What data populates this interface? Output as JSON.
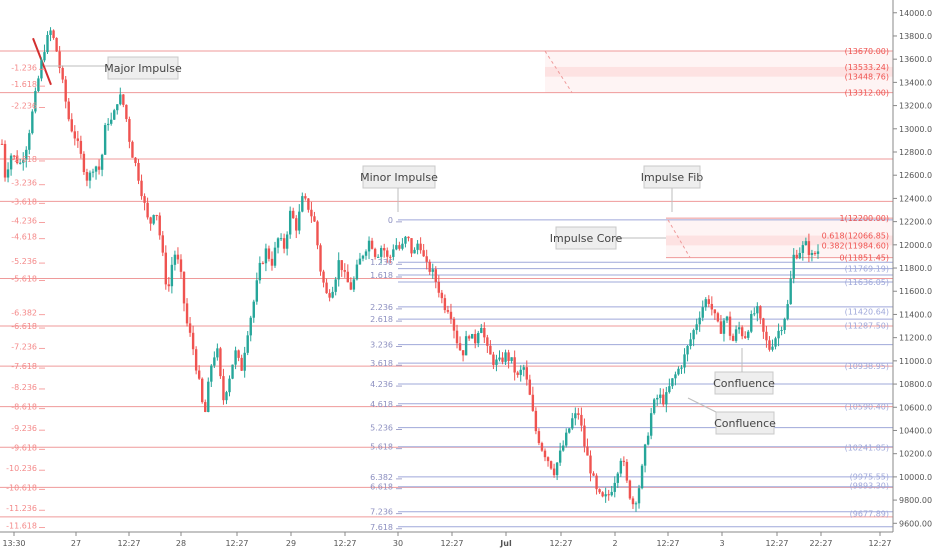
{
  "chart_data": {
    "type": "candlestick",
    "x_tick_labels": [
      "13:30",
      "27",
      "12:27",
      "28",
      "12:27",
      "29",
      "12:27",
      "30",
      "12:27",
      "Jul",
      "12:27",
      "2",
      "12:27",
      "3",
      "12:27",
      "22:27",
      "12:27"
    ],
    "y_tick_labels": [
      "14000.00",
      "13800.00",
      "13600.00",
      "13400.00",
      "13200.00",
      "13000.00",
      "12800.00",
      "12600.00",
      "12400.00",
      "12200.00",
      "12000.00",
      "11800.00",
      "11600.00",
      "11400.00",
      "11200.00",
      "11000.00",
      "10800.00",
      "10600.00",
      "10400.00",
      "10200.00",
      "10000.00",
      "9800.00",
      "9600.00"
    ],
    "y_ticks": [
      14000,
      13800,
      13600,
      13400,
      13200,
      13000,
      12800,
      12600,
      12400,
      12200,
      12000,
      11800,
      11600,
      11400,
      11200,
      11000,
      10800,
      10600,
      10400,
      10200,
      10000,
      9800,
      9600
    ],
    "ylim": [
      9525,
      14110
    ],
    "price_path": [
      [
        0,
        12870
      ],
      [
        0.5,
        12600
      ],
      [
        1.5,
        12780
      ],
      [
        3,
        12700
      ],
      [
        4,
        12860
      ],
      [
        5,
        13150
      ],
      [
        6,
        13450
      ],
      [
        7,
        13720
      ],
      [
        8,
        13850
      ],
      [
        9,
        13650
      ],
      [
        11,
        13050
      ],
      [
        12,
        12920
      ],
      [
        14,
        12550
      ],
      [
        15,
        12700
      ],
      [
        16,
        12640
      ],
      [
        17,
        13080
      ],
      [
        18,
        13060
      ],
      [
        19,
        13300
      ],
      [
        20,
        13180
      ],
      [
        21,
        12830
      ],
      [
        22,
        12650
      ],
      [
        24,
        12150
      ],
      [
        25,
        12350
      ],
      [
        26,
        11980
      ],
      [
        27,
        11570
      ],
      [
        28,
        11950
      ],
      [
        29,
        11800
      ],
      [
        30,
        11350
      ],
      [
        31,
        11150
      ],
      [
        32,
        10850
      ],
      [
        33,
        10500
      ],
      [
        34,
        10950
      ],
      [
        35,
        11120
      ],
      [
        36,
        10650
      ],
      [
        37,
        10850
      ],
      [
        38,
        11080
      ],
      [
        39,
        10920
      ],
      [
        40,
        11250
      ],
      [
        41,
        11500
      ],
      [
        42,
        11800
      ],
      [
        43,
        11950
      ],
      [
        44,
        11850
      ],
      [
        45,
        12050
      ],
      [
        46,
        11980
      ],
      [
        47,
        12280
      ],
      [
        48,
        12150
      ],
      [
        49,
        12400
      ],
      [
        50,
        12320
      ],
      [
        51,
        12180
      ],
      [
        52,
        11750
      ],
      [
        53,
        11550
      ],
      [
        54,
        11650
      ],
      [
        55,
        11880
      ],
      [
        56,
        11700
      ],
      [
        57,
        11620
      ],
      [
        58,
        11820
      ],
      [
        59,
        11950
      ],
      [
        60,
        12050
      ],
      [
        61,
        11900
      ],
      [
        62,
        12000
      ],
      [
        63,
        11850
      ],
      [
        64,
        12020
      ],
      [
        65,
        11950
      ],
      [
        66,
        12080
      ],
      [
        67,
        11900
      ],
      [
        68,
        12050
      ],
      [
        69,
        11820
      ],
      [
        70,
        11780
      ],
      [
        71,
        11650
      ],
      [
        72,
        11480
      ],
      [
        73,
        11450
      ],
      [
        74,
        11200
      ],
      [
        75,
        11050
      ],
      [
        76,
        11250
      ],
      [
        77,
        11150
      ],
      [
        78,
        11350
      ],
      [
        79,
        11100
      ],
      [
        80,
        11000
      ],
      [
        81,
        10980
      ],
      [
        82,
        11050
      ],
      [
        83,
        11000
      ],
      [
        84,
        10850
      ],
      [
        85,
        10950
      ],
      [
        86,
        10700
      ],
      [
        87,
        10400
      ],
      [
        88,
        10250
      ],
      [
        89,
        10150
      ],
      [
        90,
        10050
      ],
      [
        91,
        10200
      ],
      [
        92,
        10350
      ],
      [
        93,
        10500
      ],
      [
        94,
        10550
      ],
      [
        95,
        10250
      ],
      [
        96,
        10050
      ],
      [
        97,
        9850
      ],
      [
        98,
        9800
      ],
      [
        99,
        9850
      ],
      [
        100,
        10000
      ],
      [
        101,
        10200
      ],
      [
        102,
        9900
      ],
      [
        103,
        9750
      ],
      [
        104,
        9950
      ],
      [
        105,
        10300
      ],
      [
        106,
        10600
      ],
      [
        107,
        10700
      ],
      [
        108,
        10650
      ],
      [
        109,
        10800
      ],
      [
        110,
        10900
      ],
      [
        111,
        11000
      ],
      [
        112,
        11150
      ],
      [
        113,
        11300
      ],
      [
        114,
        11450
      ],
      [
        115,
        11550
      ],
      [
        116,
        11400
      ],
      [
        117,
        11250
      ],
      [
        118,
        11400
      ],
      [
        119,
        11150
      ],
      [
        120,
        11300
      ],
      [
        121,
        11200
      ],
      [
        122,
        11350
      ],
      [
        123,
        11450
      ],
      [
        124,
        11250
      ],
      [
        125,
        11100
      ],
      [
        126,
        11200
      ],
      [
        127,
        11300
      ],
      [
        128,
        11450
      ],
      [
        129,
        11900
      ],
      [
        130,
        11950
      ],
      [
        131,
        12000
      ],
      [
        132,
        11900
      ],
      [
        133,
        11950
      ]
    ],
    "fib_levels": [
      {
        "label": "-1.236",
        "price": 13530
      },
      {
        "label": "-1.618",
        "price": 13385
      },
      {
        "label": "-2.236",
        "price": 13200
      },
      {
        "label": "-2.618",
        "price": 12740
      },
      {
        "label": "-3.236",
        "price": 12535
      },
      {
        "label": "-3.618",
        "price": 12375
      },
      {
        "label": "-4.236",
        "price": 12210
      },
      {
        "label": "-4.618",
        "price": 12070
      },
      {
        "label": "-5.236",
        "price": 11860
      },
      {
        "label": "-5.618",
        "price": 11710
      },
      {
        "label": "-6.382",
        "price": 11415
      },
      {
        "label": "-6.618",
        "price": 11300
      },
      {
        "label": "-7.236",
        "price": 11125
      },
      {
        "label": "-7.618",
        "price": 10955
      },
      {
        "label": "-8.236",
        "price": 10775
      },
      {
        "label": "-8.618",
        "price": 10605
      },
      {
        "label": "-9.236",
        "price": 10420
      },
      {
        "label": "-9.618",
        "price": 10255
      },
      {
        "label": "-10.236",
        "price": 10075
      },
      {
        "label": "-10.618",
        "price": 9910
      },
      {
        "label": "-11.236",
        "price": 9730
      },
      {
        "label": "-11.618",
        "price": 9580
      }
    ],
    "minor_fib_levels": [
      {
        "label": "0",
        "price": 12215
      },
      {
        "label": "1.236",
        "price": 11850
      },
      {
        "label": "1.618",
        "price": 11740
      },
      {
        "label": "2.236",
        "price": 11465
      },
      {
        "label": "2.618",
        "price": 11360
      },
      {
        "label": "3.236",
        "price": 11140
      },
      {
        "label": "3.618",
        "price": 10980
      },
      {
        "label": "4.236",
        "price": 10800
      },
      {
        "label": "4.618",
        "price": 10630
      },
      {
        "label": "5.236",
        "price": 10425
      },
      {
        "label": "5.618",
        "price": 10260
      },
      {
        "label": "6.382",
        "price": 10000
      },
      {
        "label": "6.618",
        "price": 9915
      },
      {
        "label": "7.236",
        "price": 9700
      },
      {
        "label": "7.618",
        "price": 9570
      }
    ],
    "major_h_lines": [
      13670,
      13312,
      12740,
      12375,
      11710,
      11300,
      10955,
      10605,
      10255,
      9910,
      9655
    ],
    "price_tags_red": [
      {
        "text": "(13670.00)",
        "price": 13670
      },
      {
        "text": "(13533.24)",
        "price": 13533
      },
      {
        "text": "(13448.76)",
        "price": 13449
      },
      {
        "text": "(13312.00)",
        "price": 13312
      },
      {
        "text": "1(12200.00)",
        "price": 12230
      },
      {
        "text": "0.618(12066.85)",
        "price": 12080
      },
      {
        "text": "0.382(11984.60)",
        "price": 11995
      },
      {
        "text": "0(11851.45)",
        "price": 11890
      }
    ],
    "price_tags_blue": [
      {
        "text": "(11769.19)",
        "price": 11795
      },
      {
        "text": "(11636.05)",
        "price": 11680
      },
      {
        "text": "(11420.64)",
        "price": 11425
      },
      {
        "text": "(11287.50)",
        "price": 11305
      },
      {
        "text": "(10938.95)",
        "price": 10955
      },
      {
        "text": "(10590.40)",
        "price": 10605
      },
      {
        "text": "(10241.85)",
        "price": 10255
      },
      {
        "text": "(9975.55)",
        "price": 10005
      },
      {
        "text": "(9893.30)",
        "price": 9925
      },
      {
        "text": "(9677.89)",
        "price": 9685
      }
    ],
    "callouts": [
      {
        "text": "Major Impulse"
      },
      {
        "text": "Minor Impulse"
      },
      {
        "text": "Impulse Fib"
      },
      {
        "text": "Impulse Core"
      },
      {
        "text": "Confluence"
      },
      {
        "text": "Confluence"
      }
    ],
    "colors": {
      "up": "#26a69a",
      "down": "#ef5350",
      "red_line": "#ef9a9a",
      "blue_line": "#9fa8da",
      "blue_text": "#9fa8da",
      "red_text": "#ef5350",
      "axis_text": "#555555",
      "zone": "#fde0e0"
    }
  }
}
